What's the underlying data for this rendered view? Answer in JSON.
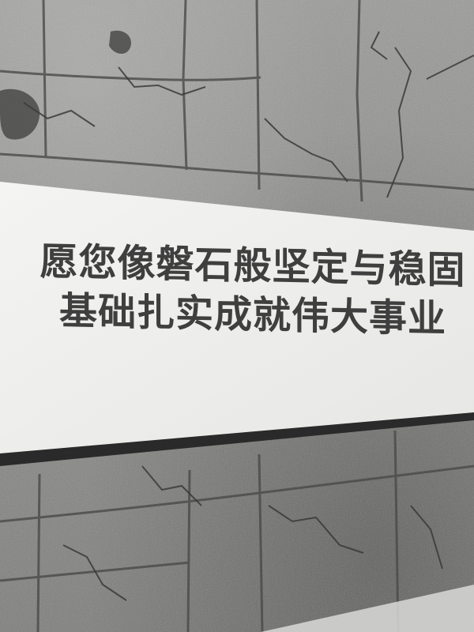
{
  "banner": {
    "line1": "愿您像磐石般坚定与稳固",
    "line2": "基础扎实成就伟大事业"
  },
  "colors": {
    "wall": "#8e8e8c",
    "banner": "#f2f2f0",
    "text": "#3f3f3f",
    "edge": "#2a2a2a"
  }
}
